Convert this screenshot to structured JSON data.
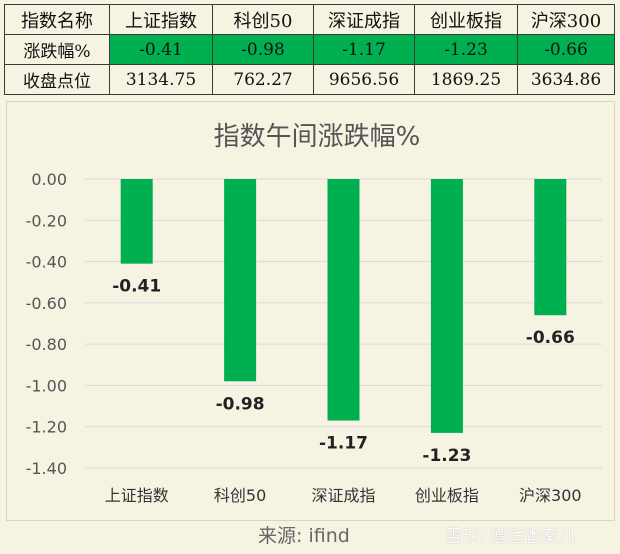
{
  "table": {
    "header": [
      "指数名称",
      "上证指数",
      "科创50",
      "深证成指",
      "创业板指",
      "沪深300"
    ],
    "rows": [
      {
        "label": "涨跌幅%",
        "values": [
          "-0.41",
          "-0.98",
          "-1.17",
          "-1.23",
          "-0.66"
        ]
      },
      {
        "label": "收盘点位",
        "values": [
          "3134.75",
          "762.27",
          "9656.56",
          "1869.25",
          "3634.86"
        ]
      }
    ]
  },
  "chart_data": {
    "type": "bar",
    "title": "指数午间涨跌幅%",
    "categories": [
      "上证指数",
      "科创50",
      "深证成指",
      "创业板指",
      "沪深300"
    ],
    "values": [
      -0.41,
      -0.98,
      -1.17,
      -1.23,
      -0.66
    ],
    "data_labels": [
      "-0.41",
      "-0.98",
      "-1.17",
      "-1.23",
      "-0.66"
    ],
    "ylim": [
      -1.4,
      0.0
    ],
    "yticks": [
      "0.00",
      "-0.20",
      "-0.40",
      "-0.60",
      "-0.80",
      "-1.00",
      "-1.20",
      "-1.40"
    ],
    "grid": true,
    "bar_color": "#00b050"
  },
  "source": "来源:  ifind",
  "watermark": "雪球: 遵适香秦儿"
}
